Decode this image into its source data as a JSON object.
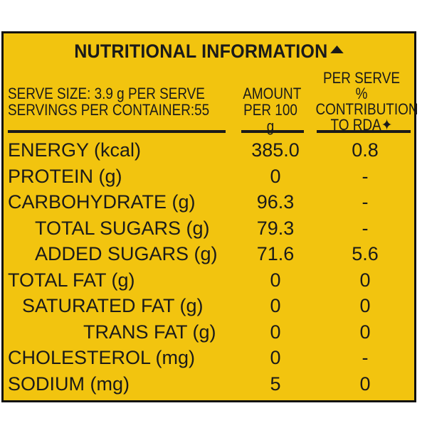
{
  "panel": {
    "title": "NUTRITIONAL INFORMATION",
    "title_icon": "triangle-mark-icon",
    "serve_size": "SERVE SIZE: 3.9 g PER SERVE",
    "servings": "SERVINGS PER CONTAINER:55",
    "amount_line1": "AMOUNT",
    "amount_line2": "PER 100 g",
    "rda_line1": "PER SERVE %",
    "rda_line2": "CONTRIBUTION",
    "rda_line3": "TO RDA✦"
  },
  "rows": [
    {
      "name": "ENERGY (kcal)",
      "amount": "385.0",
      "rda": "0.8"
    },
    {
      "name": "PROTEIN (g)",
      "amount": "0",
      "rda": "-"
    },
    {
      "name": "CARBOHYDRATE (g)",
      "amount": "96.3",
      "rda": "-"
    },
    {
      "name": "TOTAL SUGARS (g)",
      "amount": "79.3",
      "rda": "-"
    },
    {
      "name": "ADDED SUGARS (g)",
      "amount": "71.6",
      "rda": "5.6"
    },
    {
      "name": "TOTAL FAT (g)",
      "amount": "0",
      "rda": "0"
    },
    {
      "name": "SATURATED FAT (g)",
      "amount": "0",
      "rda": "0"
    },
    {
      "name": "TRANS FAT (g)",
      "amount": "0",
      "rda": "0"
    },
    {
      "name": "CHOLESTEROL (mg)",
      "amount": "0",
      "rda": "-"
    },
    {
      "name": "SODIUM (mg)",
      "amount": "5",
      "rda": "0"
    }
  ]
}
